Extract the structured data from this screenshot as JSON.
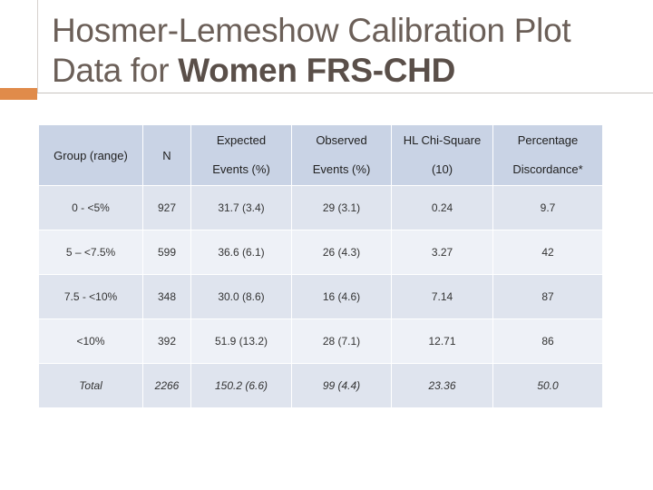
{
  "slide": {
    "title_line1": "Hosmer-Lemeshow Calibration Plot",
    "title_line2_prefix": "Data for ",
    "title_line2_bold": "Women FRS-CHD"
  },
  "colors": {
    "title": "#6b5f58",
    "accent": "#e08b4a",
    "header_bg": "#c9d3e5",
    "row_bg_odd": "#dfe4ee",
    "row_bg_even": "#eef1f7"
  },
  "table": {
    "headers": {
      "group": "Group (range)",
      "n": "N",
      "expected_1": "Expected",
      "expected_2": "Events (%)",
      "observed_1": "Observed",
      "observed_2": "Events (%)",
      "hl_1": "HL Chi-Square",
      "hl_2": "(10)",
      "pct_1": "Percentage",
      "pct_2": "Discordance*"
    },
    "rows": [
      {
        "group": "0 - <5%",
        "n": "927",
        "expected": "31.7 (3.4)",
        "observed": "29 (3.1)",
        "hl": "0.24",
        "pct": "9.7"
      },
      {
        "group": "5 – <7.5%",
        "n": "599",
        "expected": "36.6 (6.1)",
        "observed": "26 (4.3)",
        "hl": "3.27",
        "pct": "42"
      },
      {
        "group": "7.5 - <10%",
        "n": "348",
        "expected": "30.0 (8.6)",
        "observed": "16 (4.6)",
        "hl": "7.14",
        "pct": "87"
      },
      {
        "group": "<10%",
        "n": "392",
        "expected": "51.9 (13.2)",
        "observed": "28 (7.1)",
        "hl": "12.71",
        "pct": "86"
      },
      {
        "group": "Total",
        "n": "2266",
        "expected": "150.2 (6.6)",
        "observed": "99 (4.4)",
        "hl": "23.36",
        "pct": "50.0"
      }
    ]
  }
}
